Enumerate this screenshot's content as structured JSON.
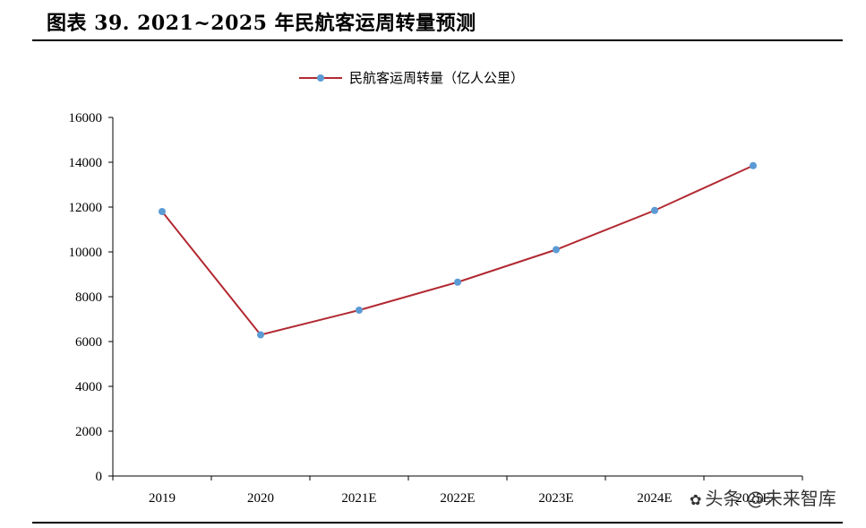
{
  "page": {
    "title": "图表 39. 2021~2025 年民航客运周转量预测"
  },
  "watermark": {
    "text": "头条 @未来智库"
  },
  "colors": {
    "line": "#b22a32",
    "marker": "#5b9bd5",
    "axis": "#000000"
  },
  "chart_data": {
    "type": "line",
    "categories": [
      "2019",
      "2020",
      "2021E",
      "2022E",
      "2023E",
      "2024E",
      "2025E"
    ],
    "series": [
      {
        "name": "民航客运周转量（亿人公里）",
        "values": [
          11800,
          6300,
          7400,
          8650,
          10100,
          11850,
          13850
        ]
      }
    ],
    "yticks": [
      "0",
      "2000",
      "4000",
      "6000",
      "8000",
      "10000",
      "12000",
      "14000",
      "16000"
    ],
    "ylim": [
      0,
      16000
    ],
    "legend_position": "top-center",
    "grid": false
  }
}
